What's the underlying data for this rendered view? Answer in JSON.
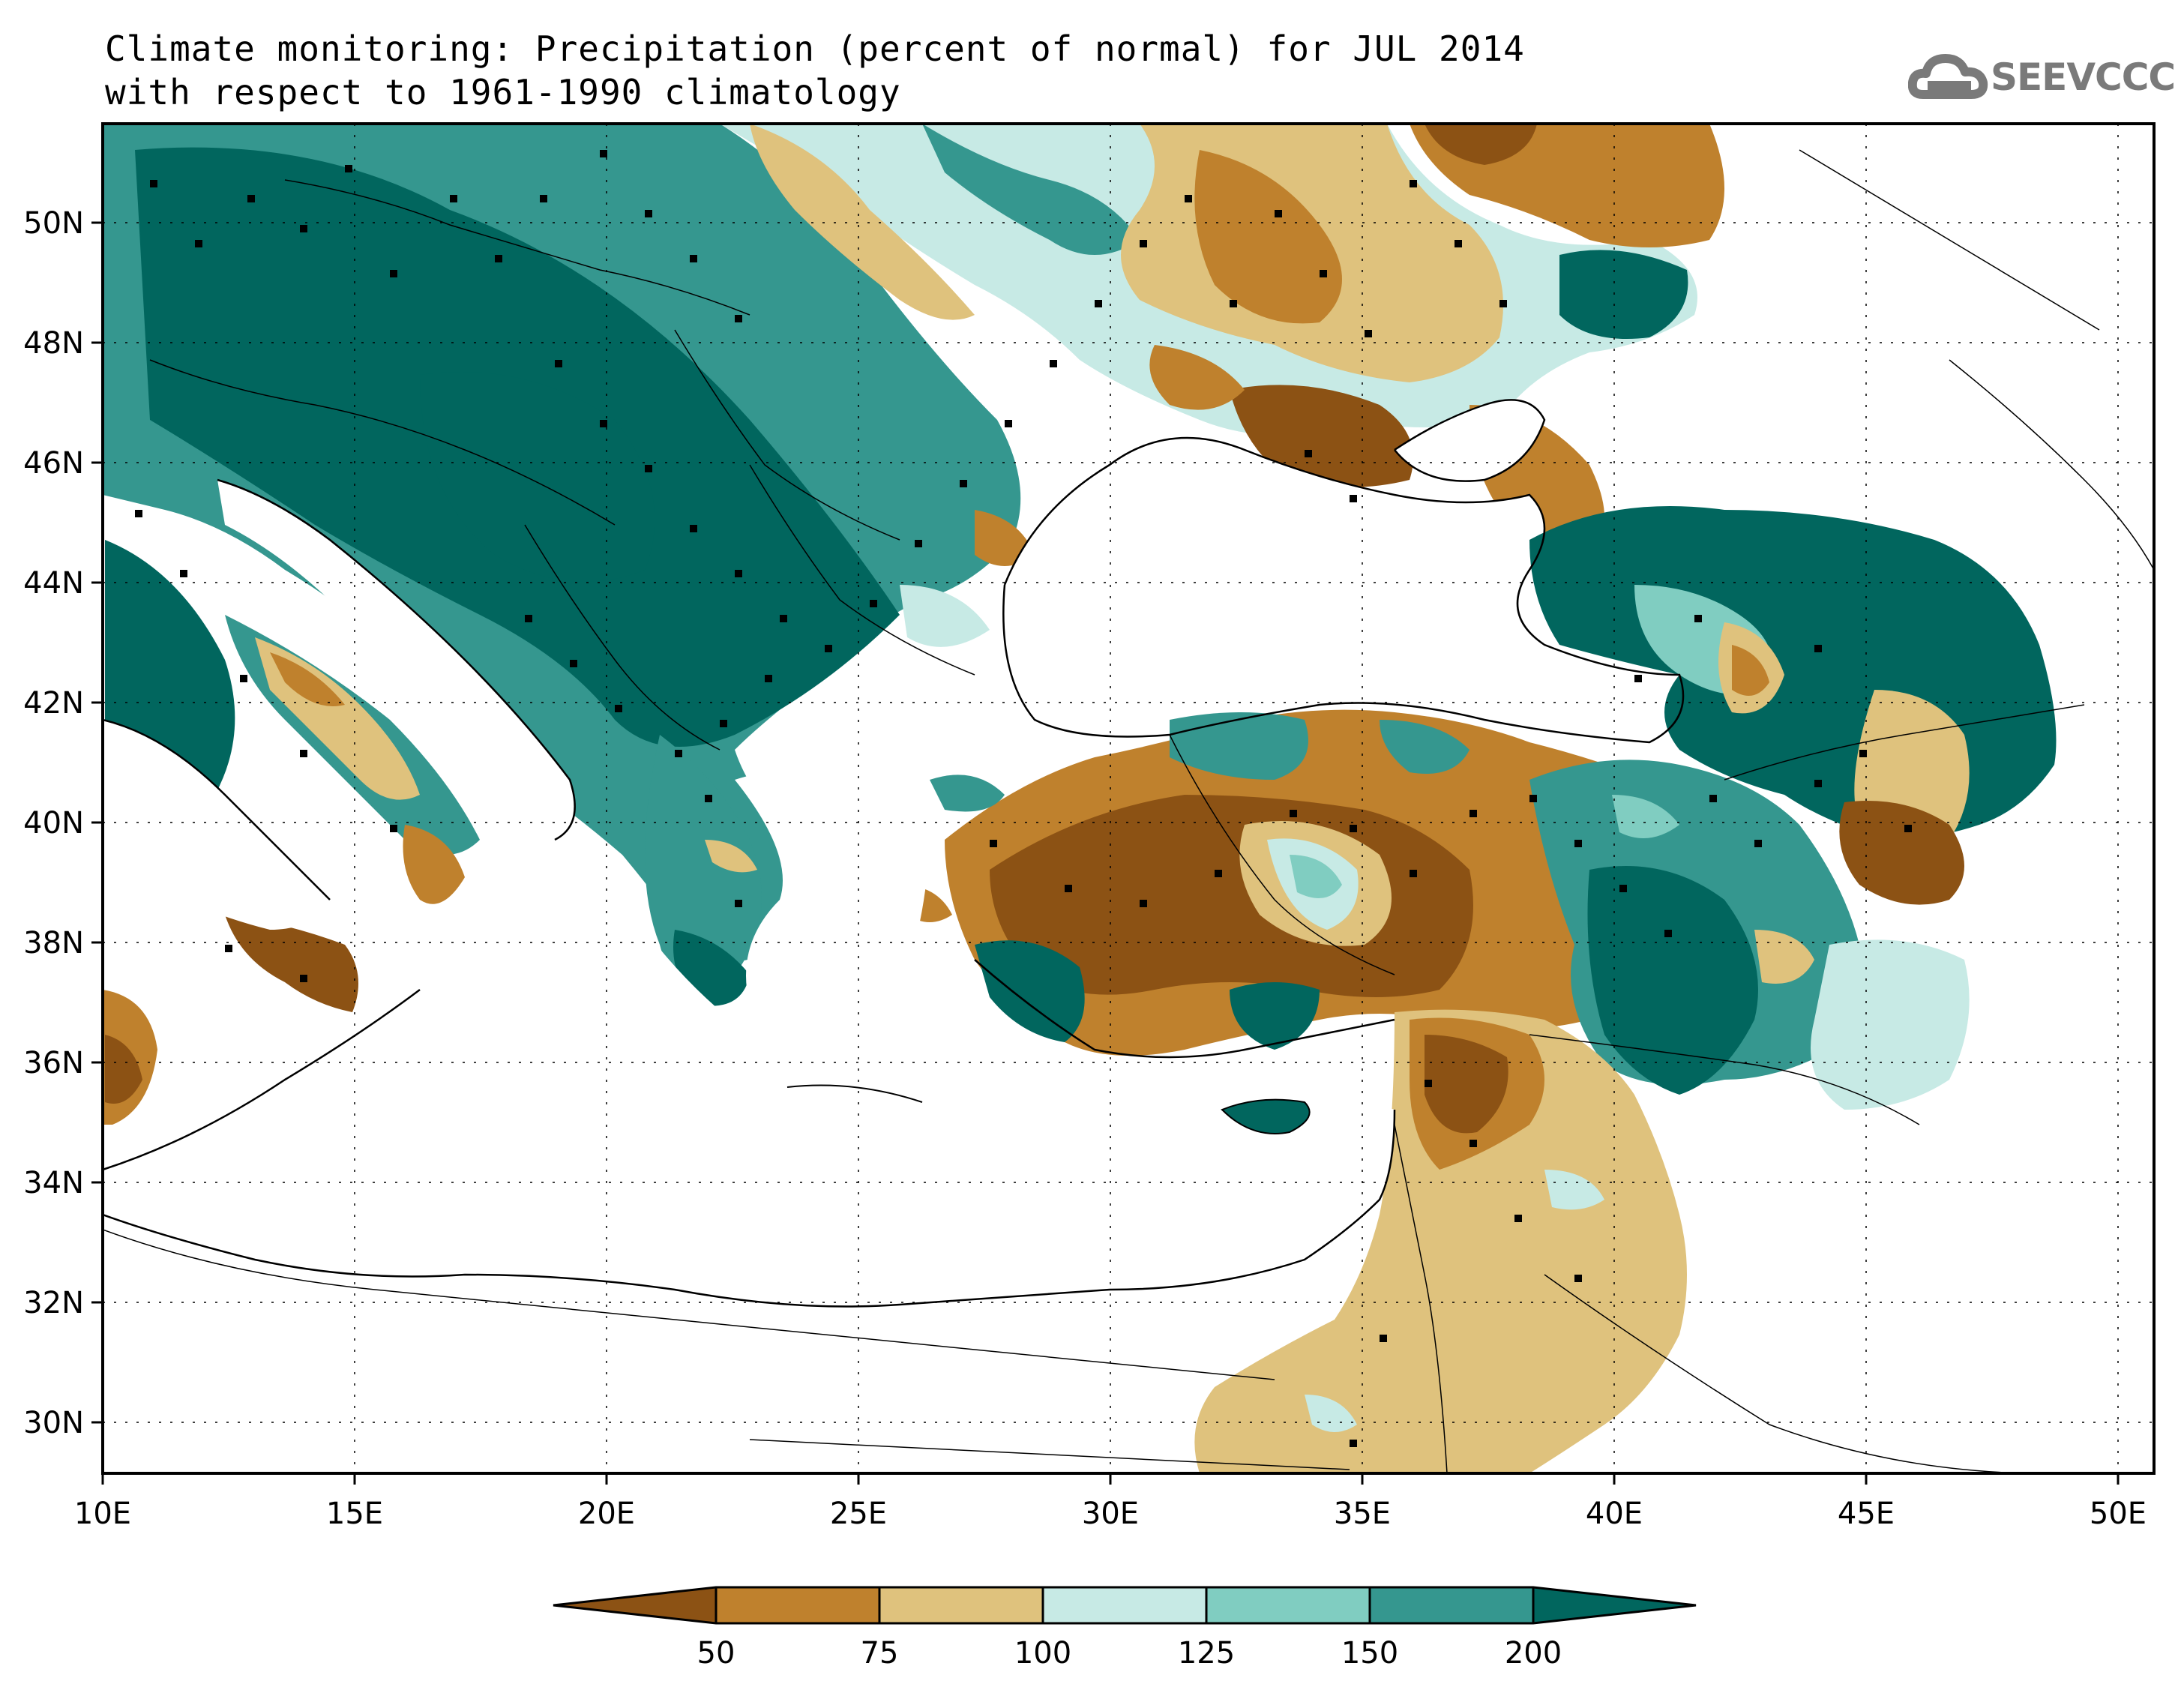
{
  "title": {
    "line1": "Climate monitoring: Precipitation (percent of normal) for JUL 2014",
    "line2": "with respect to 1961-1990 climatology"
  },
  "logo": {
    "text": "SEEVCCC",
    "icon": "cloud-icon"
  },
  "axes": {
    "lon_labels": [
      "10E",
      "15E",
      "20E",
      "25E",
      "30E",
      "35E",
      "40E",
      "45E",
      "50E"
    ],
    "lat_labels": [
      "30N",
      "32N",
      "34N",
      "36N",
      "38N",
      "40N",
      "42N",
      "44N",
      "46N",
      "48N",
      "50N"
    ]
  },
  "colorbar": {
    "labels": [
      "50",
      "75",
      "100",
      "125",
      "150",
      "200"
    ],
    "colors": [
      "#8c5214",
      "#bf812d",
      "#dfc27d",
      "#c7eae5",
      "#80cdc1",
      "#35978f",
      "#01665e"
    ]
  }
}
